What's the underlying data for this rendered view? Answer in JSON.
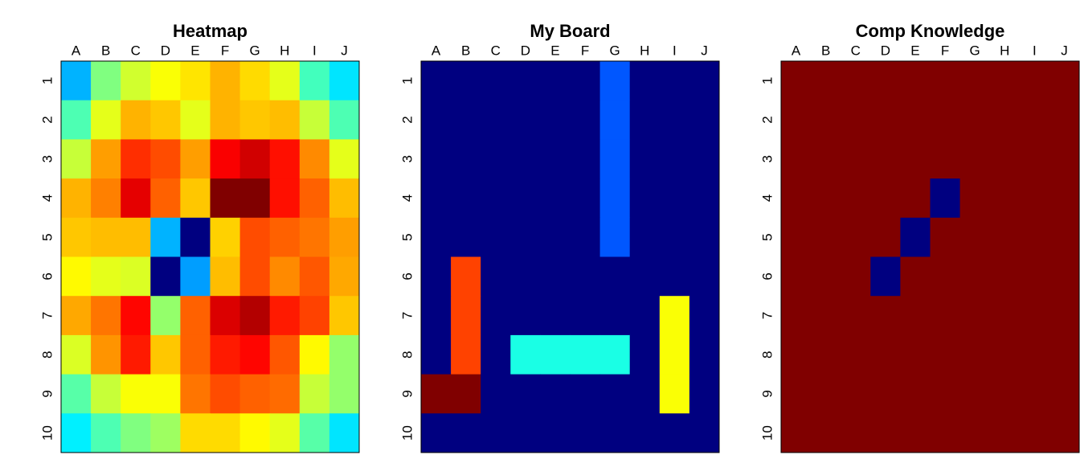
{
  "chart_data": [
    {
      "type": "heatmap",
      "title": "Heatmap",
      "colormap": "jet",
      "zlim": [
        0,
        1
      ],
      "x": [
        "A",
        "B",
        "C",
        "D",
        "E",
        "F",
        "G",
        "H",
        "I",
        "J"
      ],
      "y": [
        "1",
        "2",
        "3",
        "4",
        "5",
        "6",
        "7",
        "8",
        "9",
        "10"
      ],
      "values": [
        [
          0.3,
          0.5,
          0.58,
          0.62,
          0.65,
          0.7,
          0.66,
          0.6,
          0.44,
          0.35
        ],
        [
          0.45,
          0.6,
          0.7,
          0.68,
          0.6,
          0.7,
          0.68,
          0.69,
          0.57,
          0.45
        ],
        [
          0.57,
          0.72,
          0.83,
          0.8,
          0.72,
          0.88,
          0.92,
          0.86,
          0.74,
          0.6
        ],
        [
          0.7,
          0.75,
          0.9,
          0.78,
          0.68,
          1.0,
          1.0,
          0.86,
          0.78,
          0.69
        ],
        [
          0.68,
          0.69,
          0.69,
          0.3,
          0.0,
          0.67,
          0.8,
          0.78,
          0.76,
          0.72
        ],
        [
          0.63,
          0.6,
          0.59,
          0.0,
          0.28,
          0.69,
          0.8,
          0.74,
          0.79,
          0.71
        ],
        [
          0.71,
          0.76,
          0.87,
          0.52,
          0.78,
          0.91,
          0.95,
          0.85,
          0.81,
          0.68
        ],
        [
          0.59,
          0.73,
          0.85,
          0.68,
          0.78,
          0.85,
          0.87,
          0.79,
          0.63,
          0.52
        ],
        [
          0.46,
          0.57,
          0.62,
          0.62,
          0.76,
          0.8,
          0.78,
          0.77,
          0.57,
          0.52
        ],
        [
          0.36,
          0.45,
          0.5,
          0.53,
          0.66,
          0.66,
          0.63,
          0.6,
          0.46,
          0.35
        ]
      ]
    },
    {
      "type": "heatmap",
      "title": "My Board",
      "colormap": "jet",
      "zlim": [
        0,
        1
      ],
      "x": [
        "A",
        "B",
        "C",
        "D",
        "E",
        "F",
        "G",
        "H",
        "I",
        "J"
      ],
      "y": [
        "1",
        "2",
        "3",
        "4",
        "5",
        "6",
        "7",
        "8",
        "9",
        "10"
      ],
      "values": [
        [
          0,
          0,
          0,
          0,
          0,
          0,
          0.21,
          0,
          0,
          0
        ],
        [
          0,
          0,
          0,
          0,
          0,
          0,
          0.21,
          0,
          0,
          0
        ],
        [
          0,
          0,
          0,
          0,
          0,
          0,
          0.21,
          0,
          0,
          0
        ],
        [
          0,
          0,
          0,
          0,
          0,
          0,
          0.21,
          0,
          0,
          0
        ],
        [
          0,
          0,
          0,
          0,
          0,
          0,
          0.21,
          0,
          0,
          0
        ],
        [
          0,
          0.81,
          0,
          0,
          0,
          0,
          0,
          0,
          0,
          0
        ],
        [
          0,
          0.81,
          0,
          0,
          0,
          0,
          0,
          0,
          0.62,
          0
        ],
        [
          0,
          0.81,
          0,
          0.4,
          0.4,
          0.4,
          0.4,
          0,
          0.62,
          0
        ],
        [
          1,
          1,
          0,
          0,
          0,
          0,
          0,
          0,
          0.62,
          0
        ],
        [
          0,
          0,
          0,
          0,
          0,
          0,
          0,
          0,
          0,
          0
        ]
      ]
    },
    {
      "type": "heatmap",
      "title": "Comp Knowledge",
      "colormap": "jet",
      "zlim": [
        0,
        1
      ],
      "x": [
        "A",
        "B",
        "C",
        "D",
        "E",
        "F",
        "G",
        "H",
        "I",
        "J"
      ],
      "y": [
        "1",
        "2",
        "3",
        "4",
        "5",
        "6",
        "7",
        "8",
        "9",
        "10"
      ],
      "values": [
        [
          1,
          1,
          1,
          1,
          1,
          1,
          1,
          1,
          1,
          1
        ],
        [
          1,
          1,
          1,
          1,
          1,
          1,
          1,
          1,
          1,
          1
        ],
        [
          1,
          1,
          1,
          1,
          1,
          1,
          1,
          1,
          1,
          1
        ],
        [
          1,
          1,
          1,
          1,
          1,
          0,
          1,
          1,
          1,
          1
        ],
        [
          1,
          1,
          1,
          1,
          0,
          1,
          1,
          1,
          1,
          1
        ],
        [
          1,
          1,
          1,
          0,
          1,
          1,
          1,
          1,
          1,
          1
        ],
        [
          1,
          1,
          1,
          1,
          1,
          1,
          1,
          1,
          1,
          1
        ],
        [
          1,
          1,
          1,
          1,
          1,
          1,
          1,
          1,
          1,
          1
        ],
        [
          1,
          1,
          1,
          1,
          1,
          1,
          1,
          1,
          1,
          1
        ],
        [
          1,
          1,
          1,
          1,
          1,
          1,
          1,
          1,
          1,
          1
        ]
      ]
    }
  ]
}
